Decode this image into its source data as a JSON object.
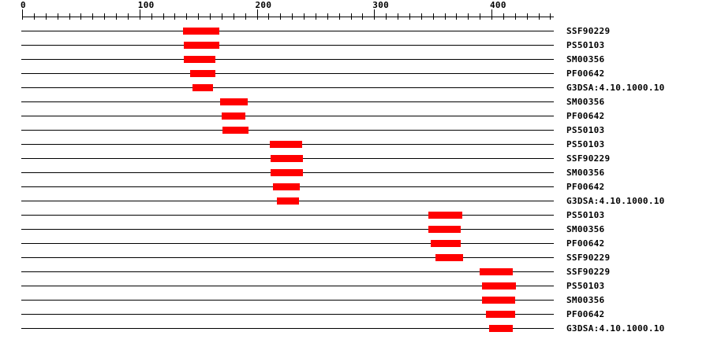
{
  "chart_data": {
    "type": "bar",
    "variant": "protein-domain-feature-plot",
    "title": "",
    "xlabel": "",
    "ylabel": "",
    "grid": false,
    "legend_position": "none",
    "axis": {
      "min": 0,
      "max": 450,
      "minor_tick_step": 10,
      "major_ticks": [
        {
          "value": 0,
          "label": "0"
        },
        {
          "value": 100,
          "label": "100"
        },
        {
          "value": 200,
          "label": "200"
        },
        {
          "value": 300,
          "label": "300"
        },
        {
          "value": 400,
          "label": "400"
        }
      ]
    },
    "sequence_span": {
      "start": 0,
      "end": 452
    },
    "rows": [
      {
        "label": "SSF90229",
        "start": 137,
        "end": 168
      },
      {
        "label": "PS50103",
        "start": 138,
        "end": 168
      },
      {
        "label": "SM00356",
        "start": 138,
        "end": 165
      },
      {
        "label": "PF00642",
        "start": 143,
        "end": 165
      },
      {
        "label": "G3DSA:4.10.1000.10",
        "start": 145,
        "end": 163
      },
      {
        "label": "SM00356",
        "start": 169,
        "end": 192
      },
      {
        "label": "PF00642",
        "start": 170,
        "end": 190
      },
      {
        "label": "PS50103",
        "start": 171,
        "end": 193
      },
      {
        "label": "PS50103",
        "start": 211,
        "end": 239
      },
      {
        "label": "SSF90229",
        "start": 212,
        "end": 239
      },
      {
        "label": "SM00356",
        "start": 212,
        "end": 239
      },
      {
        "label": "PF00642",
        "start": 214,
        "end": 237
      },
      {
        "label": "G3DSA:4.10.1000.10",
        "start": 217,
        "end": 236
      },
      {
        "label": "PS50103",
        "start": 346,
        "end": 375
      },
      {
        "label": "SM00356",
        "start": 346,
        "end": 374
      },
      {
        "label": "PF00642",
        "start": 348,
        "end": 374
      },
      {
        "label": "SSF90229",
        "start": 352,
        "end": 376
      },
      {
        "label": "SSF90229",
        "start": 390,
        "end": 418
      },
      {
        "label": "PS50103",
        "start": 392,
        "end": 421
      },
      {
        "label": "SM00356",
        "start": 392,
        "end": 420
      },
      {
        "label": "PF00642",
        "start": 395,
        "end": 420
      },
      {
        "label": "G3DSA:4.10.1000.10",
        "start": 398,
        "end": 418
      }
    ],
    "colors": {
      "feature": "#ff0000",
      "line": "#000000",
      "text": "#000000",
      "background": "#ffffff"
    }
  }
}
